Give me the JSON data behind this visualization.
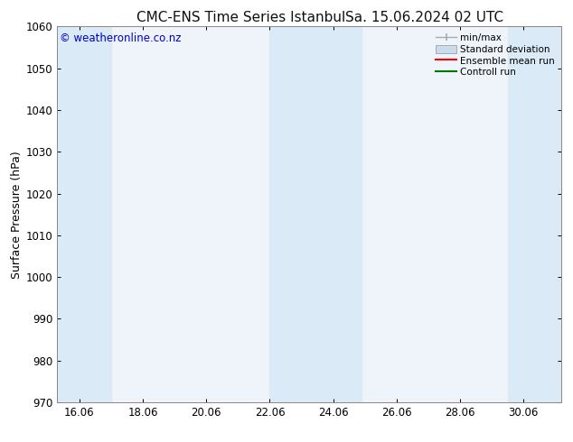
{
  "title": "CMC-ENS Time Series Istanbul",
  "title2": "Sa. 15.06.2024 02 UTC",
  "ylabel": "Surface Pressure (hPa)",
  "ylim": [
    970,
    1060
  ],
  "yticks": [
    970,
    980,
    990,
    1000,
    1010,
    1020,
    1030,
    1040,
    1050,
    1060
  ],
  "xlim_start": 15.3,
  "xlim_end": 31.2,
  "xtick_labels": [
    "16.06",
    "18.06",
    "20.06",
    "22.06",
    "24.06",
    "26.06",
    "28.06",
    "30.06"
  ],
  "xtick_positions": [
    16.0,
    18.0,
    20.0,
    22.0,
    24.0,
    26.0,
    28.0,
    30.0
  ],
  "shade_bands": [
    {
      "x_start": 15.3,
      "x_end": 17.0,
      "color": "#daeaf6"
    },
    {
      "x_start": 22.0,
      "x_end": 24.9,
      "color": "#daeaf6"
    },
    {
      "x_start": 29.5,
      "x_end": 31.2,
      "color": "#daeaf6"
    }
  ],
  "axes_bg_color": "#eef4fa",
  "bg_color": "#ffffff",
  "watermark": "© weatheronline.co.nz",
  "watermark_color": "#0000cc",
  "legend_labels": [
    "min/max",
    "Standard deviation",
    "Ensemble mean run",
    "Controll run"
  ],
  "minmax_color": "#aaaaaa",
  "std_face_color": "#c8dced",
  "std_edge_color": "#aaaaaa",
  "ensemble_color": "#ff0000",
  "control_color": "#007700",
  "title_fontsize": 11,
  "label_fontsize": 9,
  "tick_fontsize": 8.5,
  "watermark_fontsize": 8.5,
  "legend_fontsize": 7.5
}
